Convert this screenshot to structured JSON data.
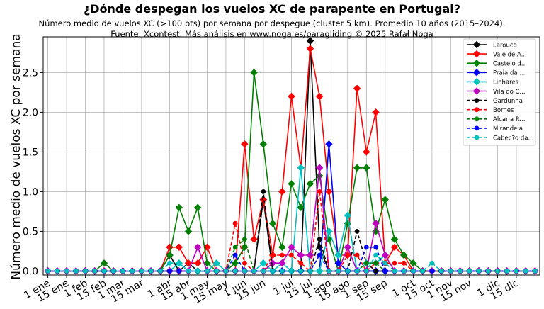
{
  "chart_data": {
    "type": "line",
    "title": "¿Dónde despegan los vuelos XC de parapente en Portugal?",
    "subtitle": "Número medio de vuelos XC (>100 pts) por semana por despegue (cluster 5 km). Promedio 10 años (2015–2024).",
    "source": "Fuente: Xcontest. Más análisis en www.noga.es/paragliding © 2025 Rafał Noga",
    "xlabel": "",
    "ylabel": "Número medio de vuelos XC por semana",
    "x_weeks": [
      1,
      2,
      3,
      4,
      5,
      6,
      7,
      8,
      9,
      10,
      11,
      12,
      13,
      14,
      15,
      16,
      17,
      18,
      19,
      20,
      21,
      22,
      23,
      24,
      25,
      26,
      27,
      28,
      29,
      30,
      31,
      32,
      33,
      34,
      35,
      36,
      37,
      38,
      39,
      40,
      41,
      42,
      43,
      44,
      45,
      46,
      47,
      48,
      49,
      50,
      51,
      52,
      53
    ],
    "x_tick_labels": [
      "1 ene",
      "15 ene",
      "1 feb",
      "15 feb",
      "1 mar",
      "15 mar",
      "1 abr",
      "15 abr",
      "1 may",
      "15 may",
      "1 jun",
      "15 jun",
      "1 jul",
      "15 jul",
      "1 ago",
      "15 ago",
      "1 sep",
      "15 sep",
      "1 oct",
      "15 oct",
      "1 nov",
      "15 nov",
      "1 dic",
      "15 dic"
    ],
    "x_tick_weeks": [
      1,
      3,
      5,
      7,
      9,
      11,
      14,
      16,
      18,
      20,
      22,
      24,
      27,
      29,
      31,
      33,
      35,
      37,
      40,
      42,
      44,
      46,
      49,
      51
    ],
    "xlim": [
      0.5,
      53.5
    ],
    "y_ticks": [
      "0.0",
      "0.5",
      "1.0",
      "1.5",
      "2.0",
      "2.5"
    ],
    "y_tick_values": [
      0,
      0.5,
      1.0,
      1.5,
      2.0,
      2.5
    ],
    "ylim": [
      -0.05,
      2.95
    ],
    "grid": true,
    "legend_position": "top-right",
    "series": [
      {
        "name": "Larouco",
        "color": "#000000",
        "dashed": false,
        "marker": "diamond",
        "values": [
          0,
          0,
          0,
          0,
          0,
          0,
          0,
          0,
          0,
          0,
          0,
          0,
          0,
          0.2,
          0,
          0.1,
          0,
          0,
          0,
          0,
          0,
          0,
          0,
          0.9,
          0,
          0,
          0,
          0,
          2.9,
          0.3,
          0,
          0,
          0,
          0,
          0,
          0,
          0,
          0,
          0,
          0,
          0,
          0,
          0,
          0,
          0,
          0,
          0,
          0,
          0,
          0,
          0,
          0,
          0
        ]
      },
      {
        "name": "Vale de A...",
        "color": "#ff0000",
        "dashed": false,
        "marker": "diamond",
        "values": [
          0,
          0,
          0,
          0,
          0,
          0,
          0,
          0,
          0,
          0,
          0,
          0,
          0,
          0.3,
          0.3,
          0.1,
          0.1,
          0.3,
          0,
          0,
          0,
          1.6,
          0.4,
          0.9,
          0.2,
          1.0,
          2.2,
          1.3,
          2.8,
          2.2,
          1.0,
          0.2,
          0.2,
          2.3,
          1.5,
          2.0,
          0.1,
          0.3,
          0.2,
          0,
          0,
          0,
          0,
          0,
          0,
          0,
          0,
          0,
          0,
          0,
          0,
          0,
          0
        ]
      },
      {
        "name": "Castelo d...",
        "color": "#008000",
        "dashed": false,
        "marker": "diamond",
        "values": [
          0,
          0,
          0,
          0,
          0,
          0,
          0.1,
          0,
          0,
          0,
          0,
          0,
          0,
          0.2,
          0.8,
          0.5,
          0.8,
          0.1,
          0,
          0,
          0.1,
          0.3,
          2.5,
          1.6,
          0.6,
          0.3,
          1.1,
          0.8,
          1.1,
          1.2,
          0.4,
          0,
          0.6,
          1.3,
          1.3,
          0.5,
          0.9,
          0.4,
          0.2,
          0.1,
          0,
          0,
          0,
          0,
          0,
          0,
          0,
          0,
          0,
          0,
          0,
          0,
          0
        ]
      },
      {
        "name": "Praia da ...",
        "color": "#0000ff",
        "dashed": false,
        "marker": "diamond",
        "values": [
          0,
          0,
          0,
          0,
          0,
          0,
          0,
          0,
          0,
          0,
          0,
          0,
          0,
          0,
          0,
          0,
          0,
          0,
          0,
          0,
          0,
          0,
          0,
          0,
          0,
          0,
          0,
          0,
          0,
          0,
          1.6,
          0.1,
          0,
          0,
          0,
          0,
          0,
          0,
          0,
          0,
          0,
          0,
          0,
          0,
          0,
          0,
          0,
          0,
          0,
          0,
          0,
          0,
          0
        ]
      },
      {
        "name": "Linhares",
        "color": "#00bfbf",
        "dashed": false,
        "marker": "diamond",
        "values": [
          0,
          0,
          0,
          0,
          0,
          0,
          0,
          0,
          0,
          0,
          0,
          0,
          0,
          0,
          0.1,
          0,
          0,
          0,
          0.1,
          0,
          0,
          0,
          0,
          0.1,
          0,
          0.1,
          0,
          1.3,
          0,
          0,
          0.5,
          0.2,
          0.7,
          0,
          0.1,
          0.1,
          0.2,
          0,
          0,
          0,
          0,
          0,
          0,
          0,
          0,
          0,
          0,
          0,
          0,
          0,
          0,
          0,
          0
        ]
      },
      {
        "name": "Vila do C...",
        "color": "#bf00bf",
        "dashed": false,
        "marker": "diamond",
        "values": [
          0,
          0,
          0,
          0,
          0,
          0,
          0,
          0,
          0,
          0,
          0,
          0,
          0,
          0,
          0,
          0,
          0.3,
          0,
          0,
          0,
          0,
          0,
          0,
          0,
          0.1,
          0.1,
          0.3,
          0.2,
          0.2,
          1.3,
          0,
          0,
          0.3,
          0,
          0,
          0.6,
          0.2,
          0,
          0,
          0,
          0,
          0,
          0,
          0,
          0,
          0,
          0,
          0,
          0,
          0,
          0,
          0,
          0
        ]
      },
      {
        "name": "Gardunha",
        "color": "#000000",
        "dashed": true,
        "marker": "circle",
        "values": [
          0,
          0,
          0,
          0,
          0,
          0,
          0,
          0,
          0,
          0,
          0,
          0,
          0,
          0,
          0,
          0,
          0,
          0,
          0,
          0,
          0,
          0,
          0,
          1.0,
          0,
          0,
          0,
          0,
          0,
          0.4,
          0,
          0,
          0,
          0.5,
          0.1,
          0,
          0,
          0,
          0,
          0,
          0,
          0,
          0,
          0,
          0,
          0,
          0,
          0,
          0,
          0,
          0,
          0,
          0
        ]
      },
      {
        "name": "Bornes",
        "color": "#ff0000",
        "dashed": true,
        "marker": "circle",
        "values": [
          0,
          0,
          0,
          0,
          0,
          0,
          0,
          0,
          0,
          0,
          0,
          0,
          0,
          0,
          0,
          0,
          0,
          0,
          0,
          0,
          0.6,
          0.1,
          0,
          0,
          0.2,
          0.2,
          0.2,
          0.1,
          0,
          1.0,
          0,
          0,
          0.2,
          0.2,
          0,
          0.1,
          0.1,
          0.1,
          0.1,
          0,
          0,
          0,
          0,
          0,
          0,
          0,
          0,
          0,
          0,
          0,
          0,
          0,
          0
        ]
      },
      {
        "name": "Alcaria R...",
        "color": "#008000",
        "dashed": true,
        "marker": "circle",
        "values": [
          0,
          0,
          0,
          0,
          0,
          0,
          0,
          0,
          0,
          0,
          0,
          0,
          0,
          0,
          0,
          0,
          0,
          0,
          0,
          0,
          0.3,
          0.4,
          0,
          0,
          0,
          0,
          0,
          0,
          0,
          0,
          0,
          0,
          0,
          0,
          0.1,
          0.1,
          0,
          0,
          0,
          0,
          0,
          0,
          0,
          0,
          0,
          0,
          0,
          0,
          0,
          0,
          0,
          0,
          0
        ]
      },
      {
        "name": "Mirandela",
        "color": "#0000ff",
        "dashed": true,
        "marker": "circle",
        "values": [
          0,
          0,
          0,
          0,
          0,
          0,
          0,
          0,
          0,
          0,
          0,
          0,
          0,
          0,
          0,
          0,
          0,
          0,
          0,
          0,
          0.2,
          0,
          0,
          0,
          0,
          0,
          0,
          0,
          0,
          0.2,
          0,
          0,
          0,
          0,
          0.3,
          0.3,
          0,
          0,
          0,
          0,
          0,
          0,
          0,
          0,
          0,
          0,
          0,
          0,
          0,
          0,
          0,
          0,
          0
        ]
      },
      {
        "name": "Cabec?o da...",
        "color": "#00bfbf",
        "dashed": true,
        "marker": "circle",
        "values": [
          0,
          0,
          0,
          0,
          0,
          0,
          0,
          0,
          0,
          0,
          0,
          0,
          0,
          0.1,
          0.1,
          0,
          0,
          0,
          0,
          0,
          0,
          0,
          0,
          0,
          0,
          0,
          0,
          0,
          0,
          0,
          0,
          0,
          0,
          0,
          0,
          0.2,
          0.1,
          0,
          0,
          0,
          0,
          0.1,
          0,
          0,
          0,
          0,
          0,
          0,
          0,
          0,
          0,
          0,
          0
        ]
      }
    ]
  }
}
